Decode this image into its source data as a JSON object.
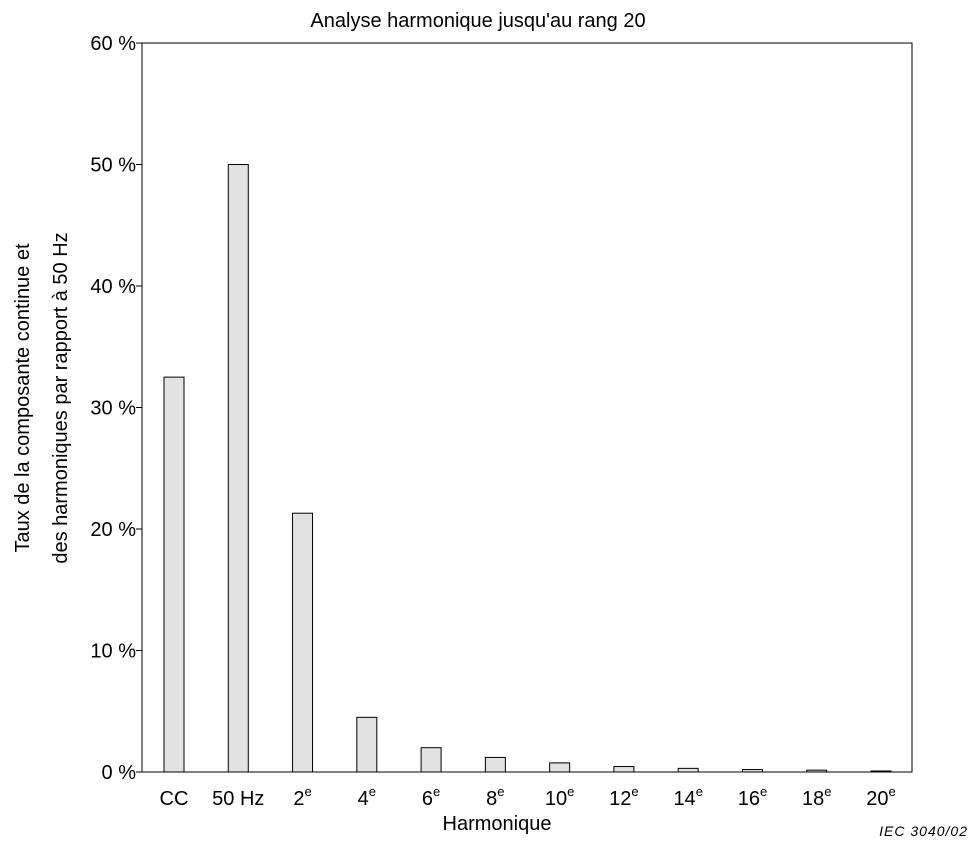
{
  "chart_data": {
    "type": "bar",
    "title": "Analyse harmonique jusqu'au rang 20",
    "xlabel": "Harmonique",
    "ylabel_line1": "Taux de la composante continue et",
    "ylabel_line2": "des harmoniques par rapport à 50 Hz",
    "ylim": [
      0,
      60
    ],
    "y_ticks": [
      0,
      10,
      20,
      30,
      40,
      50,
      60
    ],
    "y_tick_labels": [
      "0 %",
      "10 %",
      "20 %",
      "30 %",
      "40 %",
      "50 %",
      "60 %"
    ],
    "categories": [
      "CC",
      "50 Hz",
      "2e",
      "4e",
      "6e",
      "8e",
      "10e",
      "12e",
      "14e",
      "16e",
      "18e",
      "20e"
    ],
    "category_labels": [
      {
        "base": "CC",
        "sup": ""
      },
      {
        "base": "50 Hz",
        "sup": ""
      },
      {
        "base": "2",
        "sup": "e"
      },
      {
        "base": "4",
        "sup": "e"
      },
      {
        "base": "6",
        "sup": "e"
      },
      {
        "base": "8",
        "sup": "e"
      },
      {
        "base": "10",
        "sup": "e"
      },
      {
        "base": "12",
        "sup": "e"
      },
      {
        "base": "14",
        "sup": "e"
      },
      {
        "base": "16",
        "sup": "e"
      },
      {
        "base": "18",
        "sup": "e"
      },
      {
        "base": "20",
        "sup": "e"
      }
    ],
    "values": [
      32.5,
      50.0,
      21.3,
      4.5,
      2.0,
      1.2,
      0.75,
      0.45,
      0.3,
      0.2,
      0.15,
      0.08
    ],
    "grid": false,
    "bar_color": "#e2e2e2"
  },
  "credit": "IEC   3040/02"
}
